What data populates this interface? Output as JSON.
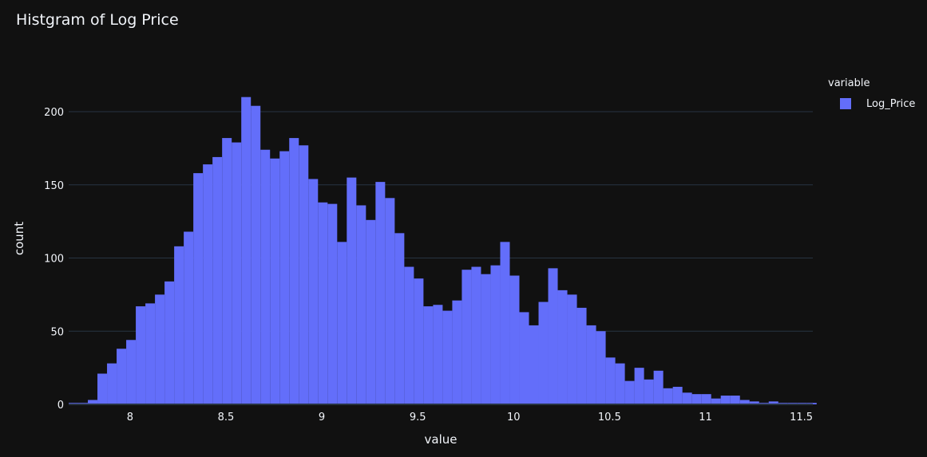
{
  "chart_data": {
    "type": "bar",
    "title": "Histgram of Log Price",
    "xlabel": "value",
    "ylabel": "count",
    "xlim": [
      7.68,
      11.56
    ],
    "ylim": [
      0,
      230
    ],
    "xticks": [
      "8",
      "8.5",
      "9",
      "9.5",
      "10",
      "10.5",
      "11",
      "11.5"
    ],
    "yticks": [
      "0",
      "50",
      "100",
      "150",
      "200"
    ],
    "grid": true,
    "legend": {
      "title": "variable",
      "placement": "top-right"
    },
    "bin_start": 7.68,
    "bin_width": 0.05,
    "series": [
      {
        "name": "Log_Price",
        "color": "#636efa",
        "values": [
          1,
          1,
          3,
          21,
          28,
          38,
          44,
          67,
          69,
          75,
          84,
          108,
          118,
          158,
          164,
          169,
          182,
          179,
          210,
          204,
          174,
          168,
          173,
          182,
          177,
          154,
          138,
          137,
          111,
          155,
          136,
          126,
          152,
          141,
          117,
          94,
          86,
          67,
          68,
          64,
          71,
          92,
          94,
          89,
          95,
          111,
          88,
          63,
          54,
          70,
          93,
          78,
          75,
          66,
          54,
          50,
          32,
          28,
          16,
          25,
          17,
          23,
          11,
          12,
          8,
          7,
          7,
          4,
          6,
          6,
          3,
          2,
          1,
          2,
          1,
          1,
          1,
          1
        ]
      }
    ]
  },
  "colors": {
    "background": "#111111",
    "grid": "#283442",
    "text": "#f2f5fa",
    "bar": "#636efa"
  }
}
